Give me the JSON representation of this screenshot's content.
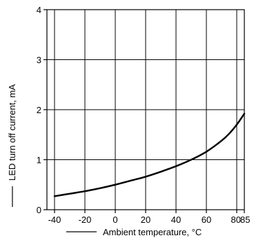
{
  "chart_data": {
    "type": "line",
    "title": "",
    "xlabel": "Ambient temperature, °C",
    "ylabel": "LED turn off current, mA",
    "xlim": [
      -45,
      85
    ],
    "ylim": [
      0,
      4
    ],
    "x_ticks": [
      -40,
      -20,
      0,
      20,
      40,
      60,
      80,
      85
    ],
    "x_tick_labels": [
      "-40",
      "-20",
      "0",
      "20",
      "40",
      "60",
      "80",
      "85"
    ],
    "y_ticks": [
      0,
      1,
      2,
      3,
      4
    ],
    "y_tick_labels": [
      "0",
      "1",
      "2",
      "3",
      "4"
    ],
    "grid": true,
    "legend": "none",
    "series": [
      {
        "x": [
          -40,
          -30,
          -20,
          -10,
          0,
          10,
          20,
          30,
          40,
          50,
          60,
          70,
          75,
          80,
          85
        ],
        "y": [
          0.27,
          0.32,
          0.37,
          0.43,
          0.5,
          0.58,
          0.66,
          0.76,
          0.87,
          1.0,
          1.16,
          1.38,
          1.52,
          1.7,
          1.92
        ]
      }
    ],
    "colors": {
      "line": "#000000",
      "grid": "#000000",
      "background": "#ffffff"
    }
  }
}
